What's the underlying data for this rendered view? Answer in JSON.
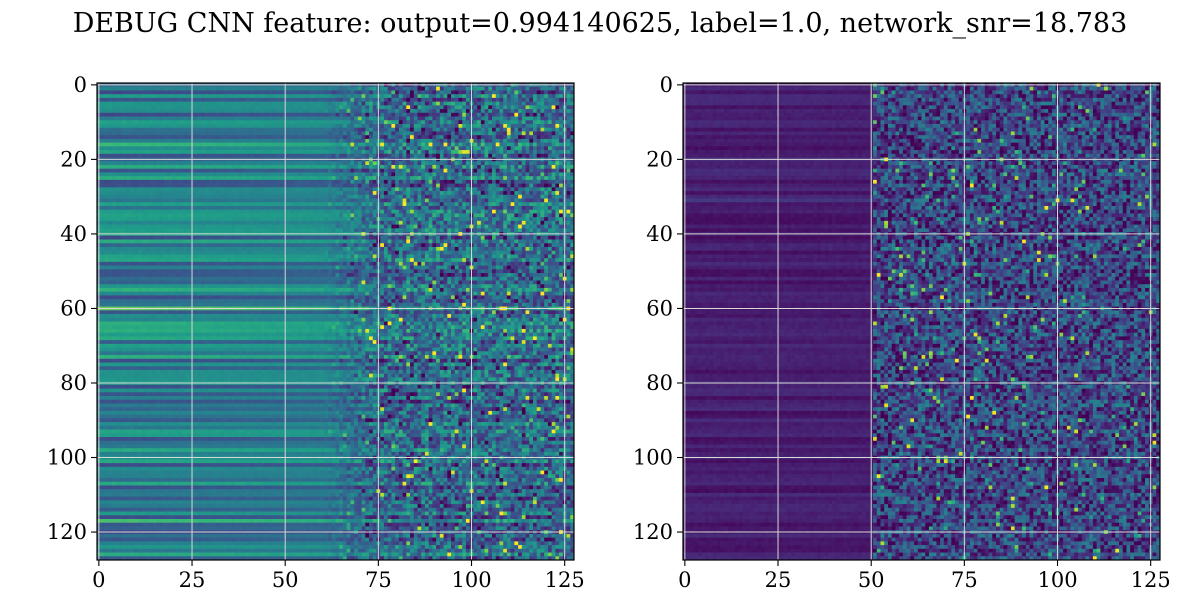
{
  "figure": {
    "suptitle": "DEBUG CNN feature: output=0.994140625, label=1.0, network_snr=18.783"
  },
  "chart_data": [
    {
      "type": "heatmap",
      "title": "",
      "xlabel": "",
      "ylabel": "",
      "colormap": "viridis",
      "rows": 128,
      "cols": 128,
      "xlim": [
        -0.5,
        127.5
      ],
      "ylim": [
        127.5,
        -0.5
      ],
      "grid": true,
      "x_ticks": [
        0,
        25,
        50,
        75,
        100,
        125
      ],
      "y_ticks": [
        0,
        20,
        40,
        60,
        80,
        100,
        120
      ],
      "x_tick_labels": [
        "0",
        "25",
        "50",
        "75",
        "100",
        "125"
      ],
      "y_tick_labels": [
        "0",
        "20",
        "40",
        "60",
        "80",
        "100",
        "120"
      ],
      "description_of_values": {
        "smooth_region_cols": [
          0,
          60
        ],
        "noisy_region_cols": [
          75,
          127
        ],
        "smooth_level": 0.42,
        "noisy_level": 0.35,
        "row_strength_variation": 0.22,
        "bright_rows": [
          16,
          45,
          55,
          60,
          68,
          100,
          103,
          117
        ]
      }
    },
    {
      "type": "heatmap",
      "title": "",
      "xlabel": "",
      "ylabel": "",
      "colormap": "viridis",
      "rows": 128,
      "cols": 128,
      "xlim": [
        -0.5,
        127.5
      ],
      "ylim": [
        127.5,
        -0.5
      ],
      "grid": true,
      "x_ticks": [
        0,
        25,
        50,
        75,
        100,
        125
      ],
      "y_ticks": [
        0,
        20,
        40,
        60,
        80,
        100,
        120
      ],
      "x_tick_labels": [
        "0",
        "25",
        "50",
        "75",
        "100",
        "125"
      ],
      "y_tick_labels": [
        "0",
        "20",
        "40",
        "60",
        "80",
        "100",
        "120"
      ],
      "description_of_values": {
        "smooth_region_cols": [
          0,
          50
        ],
        "noisy_region_cols": [
          50,
          127
        ],
        "smooth_level": 0.08,
        "noisy_level": 0.22,
        "row_strength_variation": 0.05,
        "bright_rows": [
          24,
          31,
          44,
          93,
          103,
          115,
          126
        ]
      }
    }
  ]
}
